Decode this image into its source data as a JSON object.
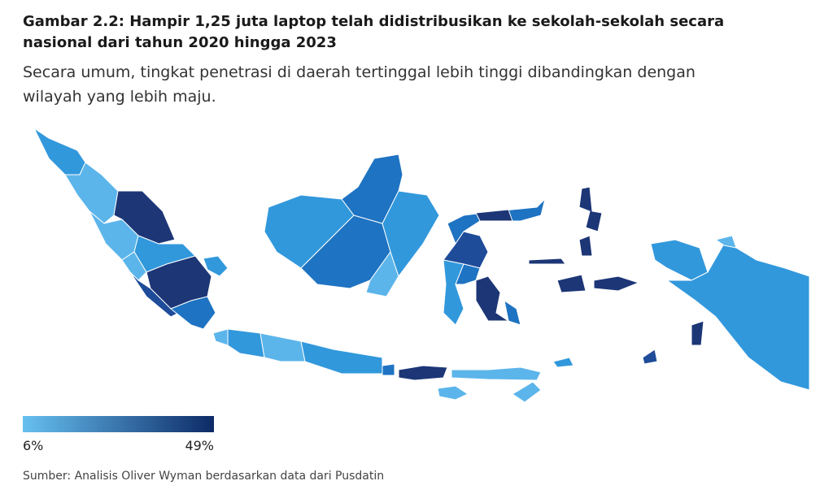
{
  "header": {
    "title_lines": [
      "Gambar 2.2: Hampir 1,25 juta laptop telah didistribusikan ke sekolah-sekolah secara",
      "nasional dari tahun 2020 hingga 2023"
    ],
    "subtitle_lines": [
      "Secara umum, tingkat penetrasi di daerah tertinggal lebih tinggi dibandingkan dengan",
      "wilayah yang lebih maju."
    ]
  },
  "legend": {
    "min_label": "6%",
    "max_label": "49%"
  },
  "footer": {
    "source": "Sumber: Analisis Oliver Wyman berdasarkan data dari Pusdatin"
  }
}
